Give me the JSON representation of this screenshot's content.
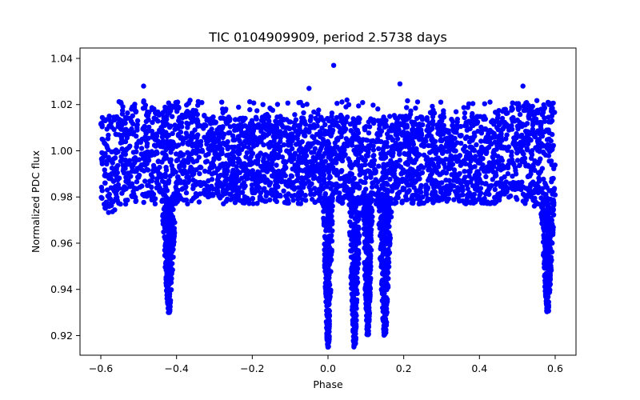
{
  "chart_data": {
    "type": "scatter",
    "title": "TIC 0104909909, period 2.5738 days",
    "xlabel": "Phase",
    "ylabel": "Normalized PDC flux",
    "xlim": [
      -0.655,
      0.655
    ],
    "ylim": [
      0.9115,
      1.0445
    ],
    "xticks": [
      -0.6,
      -0.4,
      -0.2,
      0.0,
      0.2,
      0.4,
      0.6
    ],
    "xtick_labels": [
      "−0.6",
      "−0.4",
      "−0.2",
      "0.0",
      "0.2",
      "0.4",
      "0.6"
    ],
    "yticks": [
      0.92,
      0.94,
      0.96,
      0.98,
      1.0,
      1.02,
      1.04
    ],
    "ytick_labels": [
      "0.92",
      "0.94",
      "0.96",
      "0.98",
      "1.00",
      "1.02",
      "1.04"
    ],
    "grid": false,
    "legend": "none",
    "series": [
      {
        "color": "#0000ff",
        "marker": "circle",
        "x_range": [
          -0.6,
          0.6
        ],
        "baseline": 1.0,
        "band": {
          "upper": 1.015,
          "lower": 0.977
        },
        "eclipses": [
          {
            "center": -0.42,
            "depth": 0.93,
            "width": 0.03
          },
          {
            "center": 0.58,
            "depth": 0.93,
            "width": 0.03
          },
          {
            "center": 0.0,
            "depth": 0.915,
            "width": 0.02
          },
          {
            "center": 0.07,
            "depth": 0.915,
            "width": 0.025
          },
          {
            "center": 0.105,
            "depth": 0.92,
            "width": 0.02
          },
          {
            "center": 0.15,
            "depth": 0.92,
            "width": 0.03
          }
        ],
        "notable_points": [
          {
            "x": 0.015,
            "y": 1.037
          },
          {
            "x": -0.487,
            "y": 1.028
          },
          {
            "x": 0.19,
            "y": 1.029
          },
          {
            "x": 0.515,
            "y": 1.028
          },
          {
            "x": -0.05,
            "y": 1.027
          },
          {
            "x": 0.05,
            "y": 1.022
          }
        ]
      }
    ]
  }
}
